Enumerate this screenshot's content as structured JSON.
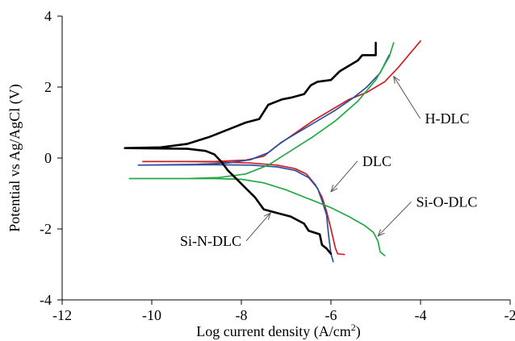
{
  "chart_data": {
    "type": "line",
    "xlabel": "Log current density (A/cm",
    "xlabel_sup": "2",
    "xlabel_close": ")",
    "ylabel": "Potential vs Ag/AgCl (V)",
    "xlim": [
      -12,
      -2
    ],
    "ylim": [
      -4,
      4
    ],
    "x_ticks": [
      -12,
      -10,
      -8,
      -6,
      -4,
      -2
    ],
    "y_ticks": [
      -4,
      -2,
      0,
      2,
      4
    ],
    "grid": false,
    "legend": "annotations",
    "series": [
      {
        "name": "H-DLC",
        "color": "#cc2020",
        "points": [
          [
            -5.7,
            -2.72
          ],
          [
            -5.85,
            -2.7
          ],
          [
            -5.9,
            -2.55
          ],
          [
            -6.0,
            -2.0
          ],
          [
            -6.1,
            -1.5
          ],
          [
            -6.2,
            -1.1
          ],
          [
            -6.35,
            -0.75
          ],
          [
            -6.55,
            -0.45
          ],
          [
            -6.8,
            -0.3
          ],
          [
            -7.2,
            -0.2
          ],
          [
            -7.8,
            -0.14
          ],
          [
            -8.6,
            -0.11
          ],
          [
            -9.3,
            -0.1
          ],
          [
            -10.2,
            -0.1
          ],
          [
            -9.3,
            -0.1
          ],
          [
            -8.6,
            -0.1
          ],
          [
            -7.9,
            -0.06
          ],
          [
            -7.5,
            0.05
          ],
          [
            -7.2,
            0.35
          ],
          [
            -6.8,
            0.7
          ],
          [
            -6.4,
            1.05
          ],
          [
            -6.0,
            1.35
          ],
          [
            -5.6,
            1.65
          ],
          [
            -5.2,
            1.85
          ],
          [
            -4.8,
            2.15
          ],
          [
            -4.5,
            2.55
          ],
          [
            -4.2,
            3.0
          ],
          [
            -4.0,
            3.3
          ]
        ]
      },
      {
        "name": "DLC",
        "color": "#2a4fa0",
        "points": [
          [
            -5.95,
            -2.92
          ],
          [
            -6.0,
            -2.7
          ],
          [
            -6.05,
            -2.2
          ],
          [
            -6.1,
            -1.6
          ],
          [
            -6.2,
            -1.2
          ],
          [
            -6.3,
            -0.85
          ],
          [
            -6.5,
            -0.55
          ],
          [
            -6.8,
            -0.35
          ],
          [
            -7.2,
            -0.25
          ],
          [
            -7.8,
            -0.2
          ],
          [
            -8.6,
            -0.19
          ],
          [
            -10.3,
            -0.2
          ],
          [
            -9.0,
            -0.18
          ],
          [
            -8.3,
            -0.14
          ],
          [
            -7.8,
            -0.05
          ],
          [
            -7.4,
            0.15
          ],
          [
            -7.1,
            0.45
          ],
          [
            -6.7,
            0.75
          ],
          [
            -6.3,
            1.05
          ],
          [
            -5.9,
            1.35
          ],
          [
            -5.5,
            1.7
          ],
          [
            -5.2,
            2.0
          ],
          [
            -4.9,
            2.4
          ],
          [
            -4.7,
            2.9
          ]
        ]
      },
      {
        "name": "Si-O-DLC",
        "color": "#22aa44",
        "points": [
          [
            -4.8,
            -2.75
          ],
          [
            -4.9,
            -2.65
          ],
          [
            -4.95,
            -2.35
          ],
          [
            -5.05,
            -2.1
          ],
          [
            -5.25,
            -1.9
          ],
          [
            -5.6,
            -1.65
          ],
          [
            -6.0,
            -1.4
          ],
          [
            -6.5,
            -1.15
          ],
          [
            -7.0,
            -0.9
          ],
          [
            -7.5,
            -0.7
          ],
          [
            -8.0,
            -0.6
          ],
          [
            -8.6,
            -0.58
          ],
          [
            -9.5,
            -0.58
          ],
          [
            -10.5,
            -0.58
          ],
          [
            -9.2,
            -0.58
          ],
          [
            -8.5,
            -0.55
          ],
          [
            -7.9,
            -0.45
          ],
          [
            -7.4,
            -0.2
          ],
          [
            -6.9,
            0.2
          ],
          [
            -6.4,
            0.6
          ],
          [
            -5.9,
            1.05
          ],
          [
            -5.4,
            1.6
          ],
          [
            -5.0,
            2.2
          ],
          [
            -4.7,
            2.85
          ],
          [
            -4.6,
            3.25
          ]
        ]
      },
      {
        "name": "Si-N-DLC",
        "color": "#000000",
        "points": [
          [
            -6.0,
            -2.7
          ],
          [
            -6.1,
            -2.55
          ],
          [
            -6.2,
            -2.45
          ],
          [
            -6.25,
            -2.15
          ],
          [
            -6.5,
            -2.05
          ],
          [
            -6.6,
            -1.85
          ],
          [
            -6.9,
            -1.65
          ],
          [
            -7.2,
            -1.55
          ],
          [
            -7.5,
            -1.45
          ],
          [
            -7.7,
            -1.1
          ],
          [
            -7.9,
            -0.85
          ],
          [
            -8.1,
            -0.6
          ],
          [
            -8.3,
            -0.35
          ],
          [
            -8.45,
            -0.1
          ],
          [
            -8.6,
            0.1
          ],
          [
            -8.8,
            0.2
          ],
          [
            -9.2,
            0.26
          ],
          [
            -10.0,
            0.27
          ],
          [
            -10.6,
            0.28
          ],
          [
            -9.8,
            0.3
          ],
          [
            -9.2,
            0.4
          ],
          [
            -8.7,
            0.6
          ],
          [
            -8.3,
            0.8
          ],
          [
            -7.9,
            1.0
          ],
          [
            -7.6,
            1.1
          ],
          [
            -7.4,
            1.5
          ],
          [
            -7.1,
            1.65
          ],
          [
            -6.9,
            1.7
          ],
          [
            -6.6,
            1.8
          ],
          [
            -6.45,
            2.05
          ],
          [
            -6.3,
            2.15
          ],
          [
            -6.0,
            2.2
          ],
          [
            -5.8,
            2.45
          ],
          [
            -5.6,
            2.6
          ],
          [
            -5.4,
            2.75
          ],
          [
            -5.3,
            2.9
          ],
          [
            -5.0,
            2.9
          ],
          [
            -5.0,
            3.25
          ]
        ]
      }
    ],
    "annotations": [
      {
        "text": "H-DLC",
        "series": "H-DLC",
        "at": [
          -4.6,
          2.3
        ],
        "label_at": [
          -3.9,
          1.0
        ],
        "anchor": "start"
      },
      {
        "text": "DLC",
        "series": "DLC",
        "at": [
          -6.0,
          -0.95
        ],
        "label_at": [
          -5.3,
          -0.2
        ],
        "anchor": "start"
      },
      {
        "text": "Si-O-DLC",
        "series": "Si-O-DLC",
        "at": [
          -4.95,
          -2.2
        ],
        "label_at": [
          -4.1,
          -1.35
        ],
        "anchor": "start"
      },
      {
        "text": "Si-N-DLC",
        "series": "Si-N-DLC",
        "at": [
          -7.35,
          -1.55
        ],
        "label_at": [
          -8.0,
          -2.45
        ],
        "anchor": "end"
      }
    ]
  }
}
